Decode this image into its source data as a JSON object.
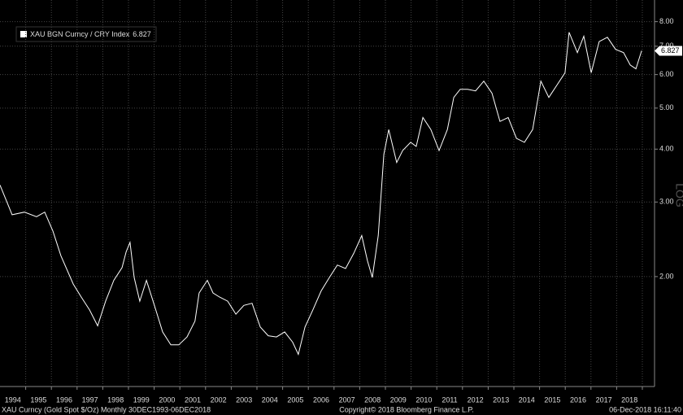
{
  "chart_data": {
    "type": "line",
    "yscale": "log",
    "grid": true,
    "axis_label": "LOG",
    "series": [
      {
        "name": "XAU BGN Curncy / CRY Index",
        "color": "#ffffff",
        "x": [
          1994.0,
          1994.47,
          1994.95,
          1995.42,
          1995.74,
          1996.06,
          1996.37,
          1996.85,
          1997.16,
          1997.48,
          1997.8,
          1998.11,
          1998.43,
          1998.75,
          1998.91,
          1999.06,
          1999.22,
          1999.44,
          1999.7,
          2000.01,
          2000.33,
          2000.65,
          2000.96,
          2001.28,
          2001.59,
          2001.75,
          2002.07,
          2002.29,
          2002.54,
          2002.86,
          2003.18,
          2003.49,
          2003.81,
          2004.13,
          2004.44,
          2004.76,
          2005.08,
          2005.39,
          2005.61,
          2005.87,
          2006.18,
          2006.5,
          2006.82,
          2007.13,
          2007.45,
          2007.77,
          2008.08,
          2008.3,
          2008.49,
          2008.72,
          2008.94,
          2009.13,
          2009.44,
          2009.67,
          2009.98,
          2010.2,
          2010.46,
          2010.77,
          2011.09,
          2011.41,
          2011.66,
          2011.91,
          2012.2,
          2012.51,
          2012.83,
          2013.15,
          2013.46,
          2013.78,
          2014.1,
          2014.41,
          2014.73,
          2015.05,
          2015.36,
          2015.68,
          2015.99,
          2016.15,
          2016.47,
          2016.72,
          2017.01,
          2017.32,
          2017.64,
          2017.96,
          2018.27,
          2018.53,
          2018.75,
          2018.97
        ],
        "values": [
          3.29,
          2.8,
          2.84,
          2.77,
          2.84,
          2.56,
          2.24,
          1.92,
          1.79,
          1.67,
          1.53,
          1.75,
          1.96,
          2.1,
          2.29,
          2.41,
          1.99,
          1.75,
          1.96,
          1.71,
          1.48,
          1.38,
          1.38,
          1.44,
          1.57,
          1.83,
          1.96,
          1.83,
          1.79,
          1.75,
          1.63,
          1.71,
          1.73,
          1.52,
          1.45,
          1.44,
          1.48,
          1.4,
          1.31,
          1.52,
          1.67,
          1.85,
          1.99,
          2.13,
          2.09,
          2.27,
          2.5,
          2.18,
          1.99,
          2.5,
          3.89,
          4.45,
          3.72,
          3.97,
          4.15,
          4.06,
          4.75,
          4.45,
          3.97,
          4.45,
          5.3,
          5.54,
          5.54,
          5.49,
          5.79,
          5.42,
          4.65,
          4.75,
          4.24,
          4.15,
          4.45,
          5.79,
          5.3,
          5.67,
          6.06,
          7.55,
          6.76,
          7.39,
          6.06,
          7.18,
          7.35,
          6.88,
          6.76,
          6.32,
          6.19,
          6.827
        ]
      }
    ],
    "xlim": [
      1994,
      2019
    ],
    "xticks": [
      {
        "value": 1994.5,
        "label": "1994"
      },
      {
        "value": 1995.5,
        "label": "1995"
      },
      {
        "value": 1996.5,
        "label": "1996"
      },
      {
        "value": 1997.5,
        "label": "1997"
      },
      {
        "value": 1998.5,
        "label": "1998"
      },
      {
        "value": 1999.5,
        "label": "1999"
      },
      {
        "value": 2000.5,
        "label": "2000"
      },
      {
        "value": 2001.5,
        "label": "2001"
      },
      {
        "value": 2002.5,
        "label": "2002"
      },
      {
        "value": 2003.5,
        "label": "2003"
      },
      {
        "value": 2004.5,
        "label": "2004"
      },
      {
        "value": 2005.5,
        "label": "2005"
      },
      {
        "value": 2006.5,
        "label": "2006"
      },
      {
        "value": 2007.5,
        "label": "2007"
      },
      {
        "value": 2008.5,
        "label": "2008"
      },
      {
        "value": 2009.5,
        "label": "2009"
      },
      {
        "value": 2010.5,
        "label": "2010"
      },
      {
        "value": 2011.5,
        "label": "2011"
      },
      {
        "value": 2012.5,
        "label": "2012"
      },
      {
        "value": 2013.5,
        "label": "2013"
      },
      {
        "value": 2014.5,
        "label": "2014"
      },
      {
        "value": 2015.5,
        "label": "2015"
      },
      {
        "value": 2016.5,
        "label": "2016"
      },
      {
        "value": 2017.5,
        "label": "2017"
      },
      {
        "value": 2018.5,
        "label": "2018"
      }
    ],
    "ylim": [
      1.1,
      9.0
    ],
    "yticks": [
      {
        "value": 2,
        "label": "2.00"
      },
      {
        "value": 3,
        "label": "3.00"
      },
      {
        "value": 4,
        "label": "4.00"
      },
      {
        "value": 5,
        "label": "5.00"
      },
      {
        "value": 6,
        "label": "6.00"
      },
      {
        "value": 7,
        "label": "7.00"
      },
      {
        "value": 8,
        "label": "8.00"
      }
    ]
  },
  "footer": {
    "left": "XAU Curncy (Gold Spot  $/Oz)  Monthly 30DEC1993-06DEC2018",
    "center": "Copyright© 2018 Bloomberg Finance L.P.",
    "right": "06-Dec-2018 16:11:40"
  }
}
